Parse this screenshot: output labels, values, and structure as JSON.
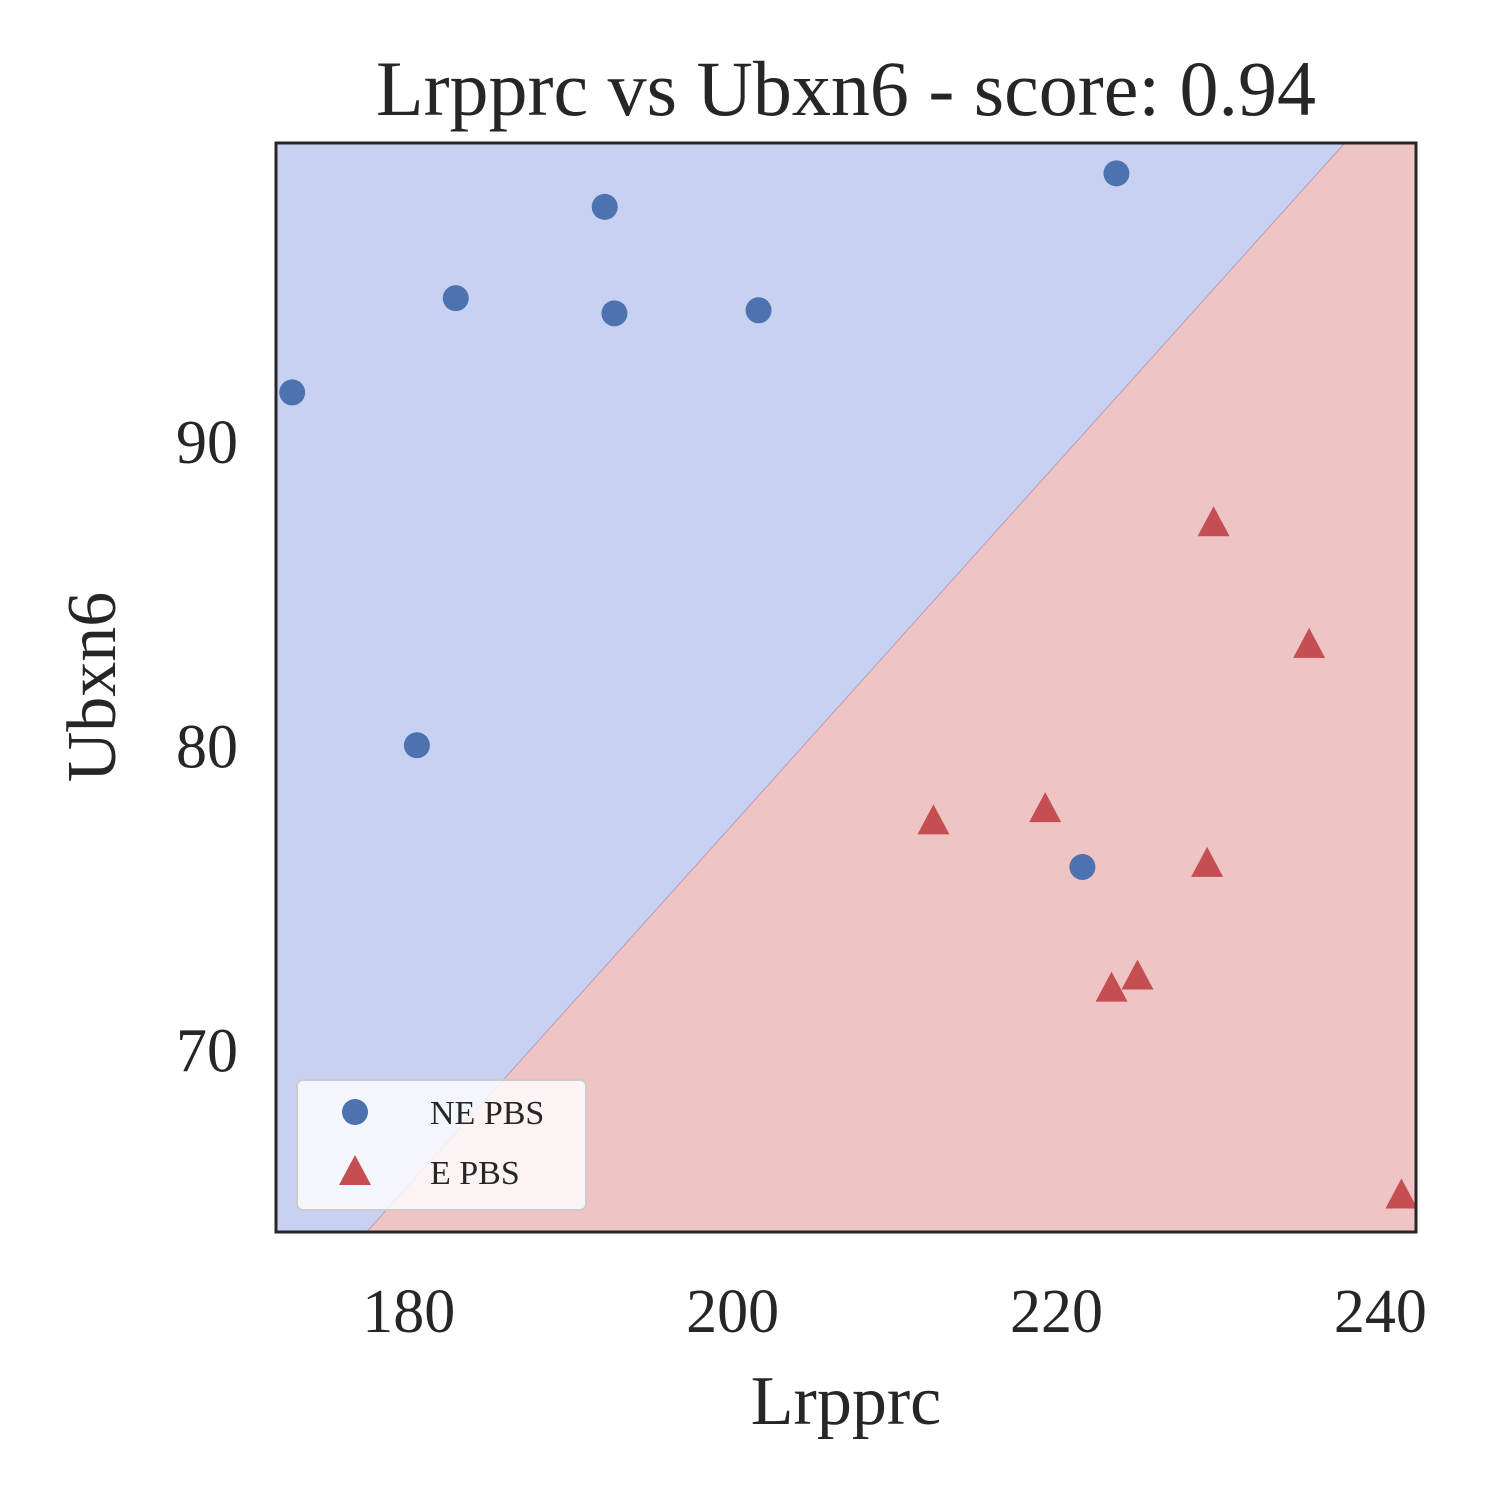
{
  "chart_data": {
    "type": "scatter",
    "title": "Lrpprc vs Ubxn6 - score: 0.94",
    "xlabel": "Lrpprc",
    "ylabel": "Ubxn6",
    "xlim": [
      171.8,
      242.2
    ],
    "ylim": [
      64.0,
      99.8
    ],
    "xticks": [
      180,
      200,
      220,
      240
    ],
    "yticks": [
      70,
      80,
      90
    ],
    "grid": false,
    "legend_position": "lower-left",
    "decision_boundary": {
      "points": [
        [
          177.4,
          64.0
        ],
        [
          237.8,
          99.8
        ]
      ],
      "class_above": "NE PBS",
      "class_below": "E PBS",
      "color_above": "#c9d1f2",
      "color_below": "#efc4c4"
    },
    "series": [
      {
        "name": "NE PBS",
        "marker": "circle",
        "color": "#4c72b0",
        "points": [
          [
            172.8,
            91.6
          ],
          [
            180.5,
            80.0
          ],
          [
            182.9,
            94.7
          ],
          [
            192.1,
            97.7
          ],
          [
            192.7,
            94.2
          ],
          [
            201.6,
            94.3
          ],
          [
            221.6,
            76.0
          ],
          [
            223.7,
            98.8
          ]
        ]
      },
      {
        "name": "E PBS",
        "marker": "triangle",
        "color": "#c44e52",
        "points": [
          [
            212.4,
            77.5
          ],
          [
            219.3,
            77.9
          ],
          [
            223.4,
            72.0
          ],
          [
            225.0,
            72.4
          ],
          [
            229.3,
            76.1
          ],
          [
            229.7,
            87.3
          ],
          [
            235.6,
            83.3
          ],
          [
            241.3,
            65.2
          ]
        ]
      }
    ]
  }
}
